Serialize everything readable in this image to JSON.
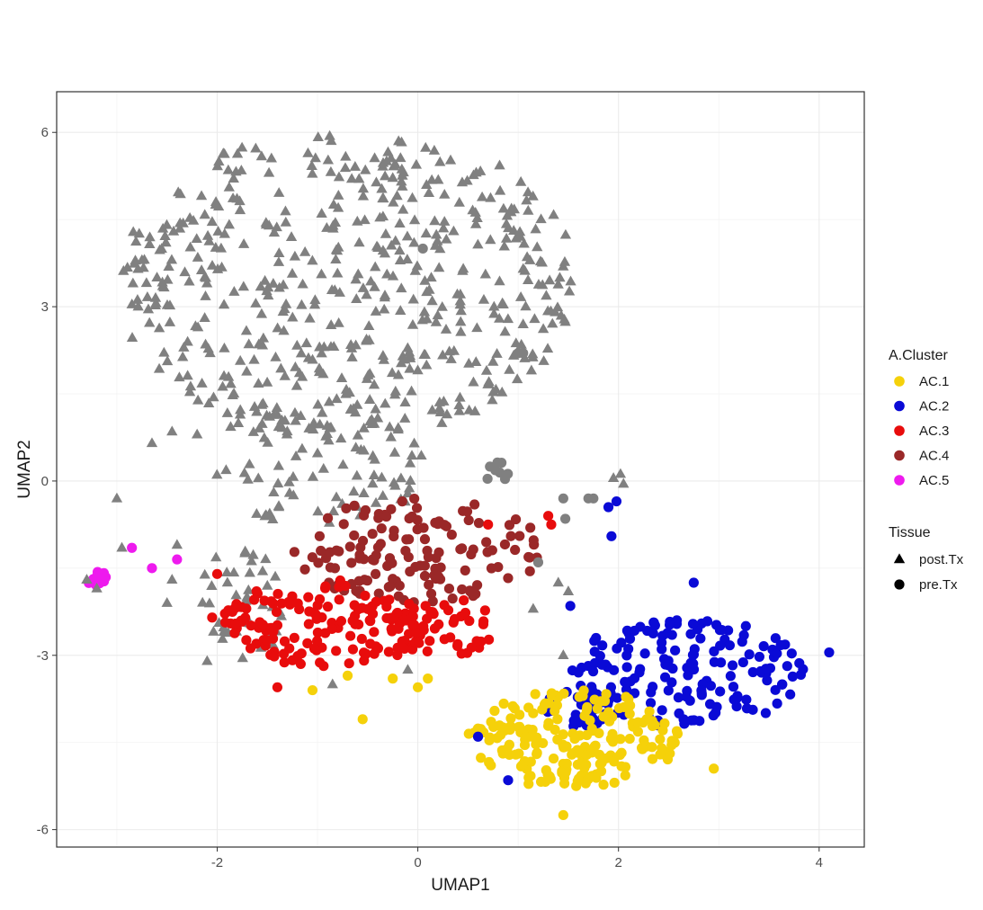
{
  "chart_data": {
    "type": "scatter",
    "title": "",
    "xlabel": "UMAP1",
    "ylabel": "UMAP2",
    "xlim": [
      -3.6,
      4.45
    ],
    "ylim": [
      -6.3,
      6.7
    ],
    "xticks": [
      -2,
      0,
      2,
      4
    ],
    "yticks": [
      -6,
      -3,
      0,
      3,
      6
    ],
    "x_tick_labels": [
      "-2",
      "0",
      "2",
      "4"
    ],
    "y_tick_labels": [
      "-6",
      "-3",
      "0",
      "3",
      "6"
    ],
    "grid": true,
    "legend_position": "right",
    "color_legend": {
      "title": "A.Cluster",
      "entries": [
        {
          "label": "AC.1",
          "color": "#f5d10a"
        },
        {
          "label": "AC.2",
          "color": "#0a0ad6"
        },
        {
          "label": "AC.3",
          "color": "#e80c0c"
        },
        {
          "label": "AC.4",
          "color": "#9a2828"
        },
        {
          "label": "AC.5",
          "color": "#ee1aee"
        }
      ]
    },
    "shape_legend": {
      "title": "Tissue",
      "entries": [
        {
          "label": "post.Tx",
          "shape": "triangle"
        },
        {
          "label": "pre.Tx",
          "shape": "circle"
        }
      ]
    },
    "post_color": "#808080",
    "clusters": [
      {
        "kind": "ellipse",
        "shape": "triangle",
        "color": "#808080",
        "n": 520,
        "cx": -0.7,
        "cy": 3.4,
        "rx": 2.3,
        "ry": 2.7,
        "seed": 11
      },
      {
        "kind": "ellipse",
        "shape": "triangle",
        "color": "#808080",
        "n": 90,
        "cx": -1.0,
        "cy": 0.3,
        "rx": 1.1,
        "ry": 1.1,
        "seed": 12
      },
      {
        "kind": "ellipse",
        "shape": "triangle",
        "color": "#808080",
        "n": 40,
        "cx": -1.75,
        "cy": -2.1,
        "rx": 0.45,
        "ry": 1.0,
        "seed": 13
      },
      {
        "kind": "ellipse",
        "shape": "circle",
        "color": "#808080",
        "n": 8,
        "cx": 0.8,
        "cy": 0.1,
        "rx": 0.15,
        "ry": 0.25,
        "seed": 14
      },
      {
        "kind": "ellipse",
        "shape": "circle",
        "color": "#9a2828",
        "n": 140,
        "cx": 0.0,
        "cy": -1.2,
        "rx": 1.25,
        "ry": 0.9,
        "seed": 21
      },
      {
        "kind": "ellipse",
        "shape": "circle",
        "color": "#e80c0c",
        "n": 150,
        "cx": -0.9,
        "cy": -2.45,
        "rx": 1.1,
        "ry": 0.75,
        "seed": 31
      },
      {
        "kind": "ellipse",
        "shape": "circle",
        "color": "#e80c0c",
        "n": 40,
        "cx": 0.25,
        "cy": -2.5,
        "rx": 0.55,
        "ry": 0.55,
        "seed": 32
      },
      {
        "kind": "ellipse",
        "shape": "circle",
        "color": "#0a0ad6",
        "n": 160,
        "cx": 2.7,
        "cy": -3.3,
        "rx": 1.2,
        "ry": 0.95,
        "seed": 41
      },
      {
        "kind": "ellipse",
        "shape": "circle",
        "color": "#0a0ad6",
        "n": 25,
        "cx": 1.6,
        "cy": -3.9,
        "rx": 0.35,
        "ry": 0.35,
        "seed": 42
      },
      {
        "kind": "ellipse",
        "shape": "circle",
        "color": "#f5d10a",
        "n": 200,
        "cx": 1.55,
        "cy": -4.45,
        "rx": 1.05,
        "ry": 0.85,
        "seed": 51
      },
      {
        "kind": "ellipse",
        "shape": "circle",
        "color": "#ee1aee",
        "n": 12,
        "cx": -3.2,
        "cy": -1.7,
        "rx": 0.12,
        "ry": 0.15,
        "seed": 61
      }
    ],
    "extra_points": [
      {
        "x": -2.65,
        "y": -1.5,
        "color": "#ee1aee",
        "shape": "circle"
      },
      {
        "x": -2.4,
        "y": -1.35,
        "color": "#ee1aee",
        "shape": "circle"
      },
      {
        "x": -2.85,
        "y": -1.15,
        "color": "#ee1aee",
        "shape": "circle"
      },
      {
        "x": -2.0,
        "y": -1.6,
        "color": "#e80c0c",
        "shape": "circle"
      },
      {
        "x": -2.05,
        "y": -2.35,
        "color": "#e80c0c",
        "shape": "circle"
      },
      {
        "x": -1.4,
        "y": -3.55,
        "color": "#e80c0c",
        "shape": "circle"
      },
      {
        "x": 1.3,
        "y": -0.6,
        "color": "#e80c0c",
        "shape": "circle"
      },
      {
        "x": 1.33,
        "y": -0.75,
        "color": "#e80c0c",
        "shape": "circle"
      },
      {
        "x": 0.7,
        "y": -0.75,
        "color": "#e80c0c",
        "shape": "circle"
      },
      {
        "x": 1.45,
        "y": -0.3,
        "color": "#808080",
        "shape": "circle"
      },
      {
        "x": 1.47,
        "y": -0.65,
        "color": "#808080",
        "shape": "circle"
      },
      {
        "x": 1.75,
        "y": -0.3,
        "color": "#808080",
        "shape": "circle"
      },
      {
        "x": 1.7,
        "y": -0.3,
        "color": "#808080",
        "shape": "circle"
      },
      {
        "x": 1.0,
        "y": 2.2,
        "color": "#808080",
        "shape": "circle"
      },
      {
        "x": 1.05,
        "y": 2.2,
        "color": "#808080",
        "shape": "circle"
      },
      {
        "x": 0.05,
        "y": 4.0,
        "color": "#808080",
        "shape": "circle"
      },
      {
        "x": 1.2,
        "y": -1.4,
        "color": "#808080",
        "shape": "circle"
      },
      {
        "x": 1.9,
        "y": -0.45,
        "color": "#0a0ad6",
        "shape": "circle"
      },
      {
        "x": 1.98,
        "y": -0.35,
        "color": "#0a0ad6",
        "shape": "circle"
      },
      {
        "x": 1.93,
        "y": -0.95,
        "color": "#0a0ad6",
        "shape": "circle"
      },
      {
        "x": 1.52,
        "y": -2.15,
        "color": "#0a0ad6",
        "shape": "circle"
      },
      {
        "x": 0.6,
        "y": -4.4,
        "color": "#0a0ad6",
        "shape": "circle"
      },
      {
        "x": 0.9,
        "y": -5.15,
        "color": "#0a0ad6",
        "shape": "circle"
      },
      {
        "x": 4.1,
        "y": -2.95,
        "color": "#0a0ad6",
        "shape": "circle"
      },
      {
        "x": 2.75,
        "y": -1.75,
        "color": "#0a0ad6",
        "shape": "circle"
      },
      {
        "x": -1.05,
        "y": -3.6,
        "color": "#f5d10a",
        "shape": "circle"
      },
      {
        "x": -0.7,
        "y": -3.35,
        "color": "#f5d10a",
        "shape": "circle"
      },
      {
        "x": -0.55,
        "y": -4.1,
        "color": "#f5d10a",
        "shape": "circle"
      },
      {
        "x": -0.25,
        "y": -3.4,
        "color": "#f5d10a",
        "shape": "circle"
      },
      {
        "x": 0.0,
        "y": -3.55,
        "color": "#f5d10a",
        "shape": "circle"
      },
      {
        "x": 0.1,
        "y": -3.4,
        "color": "#f5d10a",
        "shape": "circle"
      },
      {
        "x": 2.95,
        "y": -4.95,
        "color": "#f5d10a",
        "shape": "circle"
      },
      {
        "x": 1.45,
        "y": -5.75,
        "color": "#f5d10a",
        "shape": "circle"
      },
      {
        "x": -3.0,
        "y": -0.3,
        "color": "#808080",
        "shape": "triangle"
      },
      {
        "x": -2.65,
        "y": 0.65,
        "color": "#808080",
        "shape": "triangle"
      },
      {
        "x": -2.95,
        "y": -1.15,
        "color": "#808080",
        "shape": "triangle"
      },
      {
        "x": -2.4,
        "y": -1.1,
        "color": "#808080",
        "shape": "triangle"
      },
      {
        "x": -2.45,
        "y": -1.7,
        "color": "#808080",
        "shape": "triangle"
      },
      {
        "x": -2.5,
        "y": -2.1,
        "color": "#808080",
        "shape": "triangle"
      },
      {
        "x": -3.2,
        "y": -1.85,
        "color": "#808080",
        "shape": "triangle"
      },
      {
        "x": -3.3,
        "y": -1.7,
        "color": "#808080",
        "shape": "triangle"
      },
      {
        "x": -2.1,
        "y": -3.1,
        "color": "#808080",
        "shape": "triangle"
      },
      {
        "x": -0.85,
        "y": -3.5,
        "color": "#808080",
        "shape": "triangle"
      },
      {
        "x": -0.1,
        "y": -3.25,
        "color": "#808080",
        "shape": "triangle"
      },
      {
        "x": 1.4,
        "y": -1.75,
        "color": "#808080",
        "shape": "triangle"
      },
      {
        "x": 1.5,
        "y": -1.9,
        "color": "#808080",
        "shape": "triangle"
      },
      {
        "x": 1.15,
        "y": -2.2,
        "color": "#808080",
        "shape": "triangle"
      },
      {
        "x": 1.45,
        "y": -3.0,
        "color": "#808080",
        "shape": "triangle"
      },
      {
        "x": 1.95,
        "y": 0.05,
        "color": "#808080",
        "shape": "triangle"
      },
      {
        "x": 2.02,
        "y": 0.12,
        "color": "#808080",
        "shape": "triangle"
      },
      {
        "x": 2.05,
        "y": -0.05,
        "color": "#808080",
        "shape": "triangle"
      },
      {
        "x": -2.2,
        "y": 0.8,
        "color": "#808080",
        "shape": "triangle"
      },
      {
        "x": -2.45,
        "y": 0.85,
        "color": "#808080",
        "shape": "triangle"
      },
      {
        "x": -2.75,
        "y": 3.8,
        "color": "#808080",
        "shape": "triangle"
      },
      {
        "x": -2.6,
        "y": 3.5,
        "color": "#808080",
        "shape": "triangle"
      },
      {
        "x": 1.1,
        "y": 4.65,
        "color": "#808080",
        "shape": "triangle"
      },
      {
        "x": 1.05,
        "y": 3.65,
        "color": "#808080",
        "shape": "triangle"
      },
      {
        "x": 0.75,
        "y": 2.05,
        "color": "#808080",
        "shape": "triangle"
      }
    ]
  }
}
